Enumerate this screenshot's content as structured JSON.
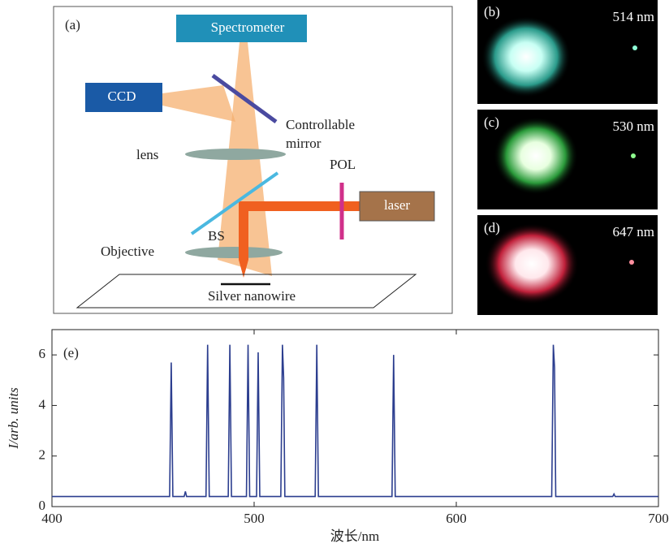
{
  "diagram": {
    "panel_label": "(a)",
    "spectrometer": "Spectrometer",
    "ccd": "CCD",
    "mirror_line1": "Controllable",
    "mirror_line2": "mirror",
    "lens": "lens",
    "pol": "POL",
    "laser": "laser",
    "bs": "BS",
    "objective": "Objective",
    "nanowire": "Silver nanowire"
  },
  "images": [
    {
      "panel_label": "(b)",
      "wavelength": "514 nm"
    },
    {
      "panel_label": "(c)",
      "wavelength": "530 nm"
    },
    {
      "panel_label": "(d)",
      "wavelength": "647 nm"
    }
  ],
  "chart_data": {
    "type": "line",
    "panel_label": "(e)",
    "x_label": "波长/nm",
    "y_label": "I/arb. units",
    "color": "#2c3e8f",
    "x": [
      400,
      458.2,
      459,
      459.8,
      465.4,
      466,
      466.6,
      476.2,
      477,
      477.8,
      487.2,
      488,
      488.8,
      496.2,
      497,
      497.8,
      501.2,
      502,
      502.8,
      513.2,
      514,
      514.6,
      515.2,
      530.2,
      531,
      531.8,
      568.2,
      569,
      569.8,
      647.2,
      648,
      648.6,
      649.2,
      677.4,
      678,
      678.6,
      700
    ],
    "values": [
      0.4,
      0.4,
      5.7,
      0.4,
      0.4,
      0.6,
      0.4,
      0.4,
      6.4,
      0.4,
      0.4,
      6.4,
      0.4,
      0.4,
      6.4,
      0.4,
      0.4,
      6.1,
      0.4,
      0.4,
      6.4,
      5.1,
      0.4,
      0.4,
      6.4,
      0.4,
      0.4,
      6.0,
      0.4,
      0.4,
      6.4,
      5.5,
      0.4,
      0.4,
      0.5,
      0.4,
      0.4
    ],
    "xlim": [
      400,
      700
    ],
    "xticks": [
      400,
      500,
      600,
      700
    ],
    "ylim": [
      0,
      7
    ],
    "yticks": [
      0,
      2,
      4,
      6
    ]
  }
}
